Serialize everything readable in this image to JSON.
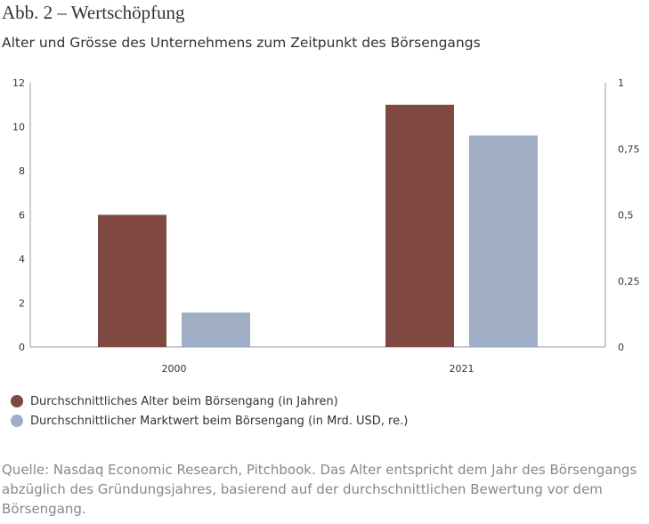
{
  "title": "Abb. 2 – Wertschöpfung",
  "subtitle": "Alter und Grösse des Unternehmens zum Zeitpunkt des Börsengangs",
  "chart_data": {
    "type": "bar",
    "categories": [
      "2000",
      "2021"
    ],
    "series": [
      {
        "name": "Durchschnittliches Alter beim Börsengang (in Jahren)",
        "values": [
          6,
          11
        ],
        "axis": "left",
        "color": "#7f4941"
      },
      {
        "name": "Durchschnittlicher Marktwert beim Börsengang (in Mrd. USD, re.)",
        "values": [
          0.13,
          0.8
        ],
        "axis": "right",
        "color": "#9faec4"
      }
    ],
    "left_axis": {
      "ylim": [
        0,
        12
      ],
      "ticks": [
        "0",
        "2",
        "4",
        "6",
        "8",
        "10",
        "12"
      ]
    },
    "right_axis": {
      "ylim": [
        0,
        1
      ],
      "ticks": [
        "0",
        "0,25",
        "0,5",
        "0,75",
        "1"
      ]
    },
    "legend_position": "bottom-left",
    "grid": false
  },
  "source": "Quelle: Nasdaq Economic Research, Pitchbook. Das Alter entspricht dem Jahr des Börsengangs abzüglich des Gründungsjahres, basierend auf der durchschnittlichen Bewertung vor dem Börsengang."
}
